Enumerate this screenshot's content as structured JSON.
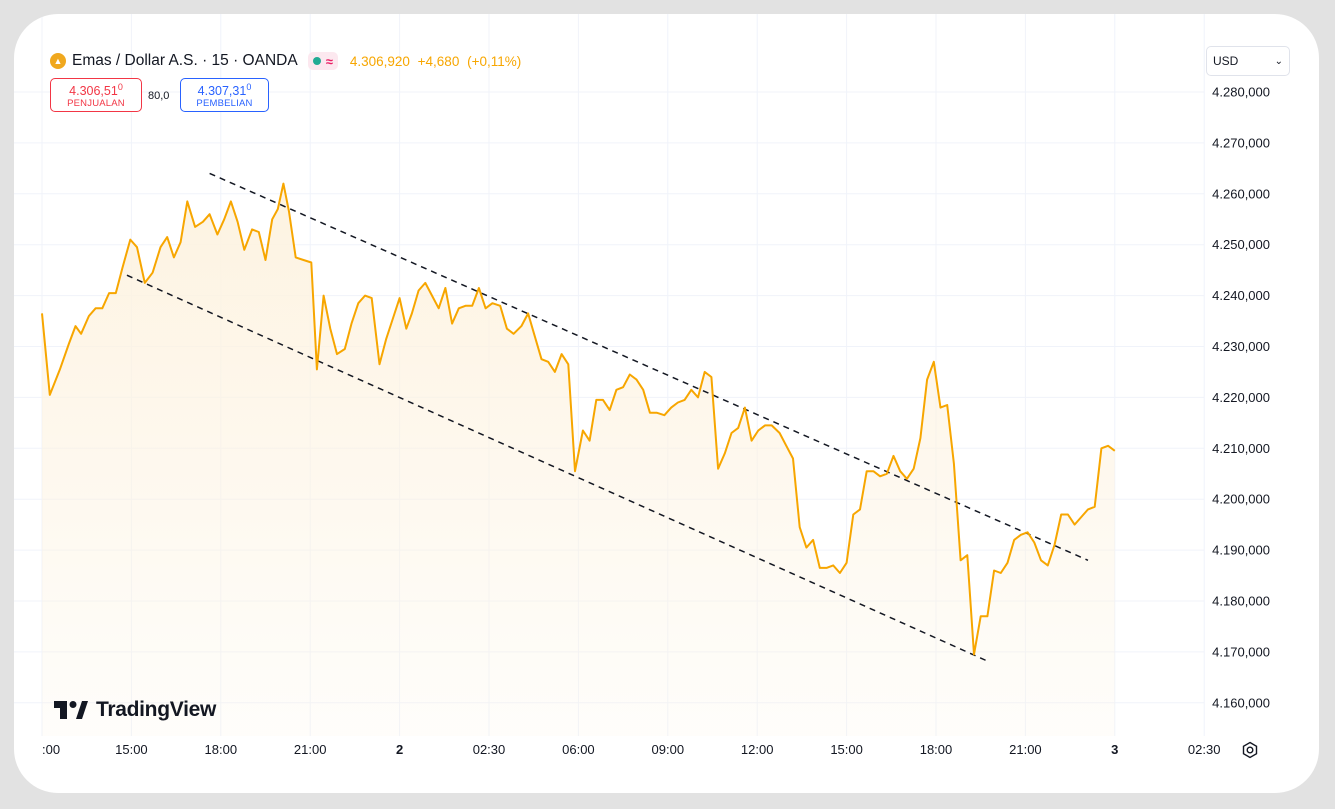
{
  "header": {
    "symbol": "Emas / Dollar A.S. · 15 · OANDA",
    "ohlc_value": "4.306,920",
    "ohlc_change": "+4,680",
    "ohlc_change_pct": "(+0,11%)",
    "symbol_icon": "gold-coin-icon",
    "status_icons": [
      "market-open-dot-icon",
      "delayed-data-wave-icon"
    ]
  },
  "trade": {
    "sell_price": "4.306,51",
    "sell_price_small": "0",
    "sell_label": "PENJUALAN",
    "spread": "80,0",
    "buy_price": "4.307,31",
    "buy_price_small": "0",
    "buy_label": "PEMBELIAN"
  },
  "currency": {
    "value": "USD",
    "icon": "chevron-down-icon"
  },
  "logo": {
    "text": "TradingView",
    "icon": "tradingview-logo-icon"
  },
  "settings": {
    "icon": "gear-icon"
  },
  "colors": {
    "line": "#f7a600",
    "sell": "#f23645",
    "buy": "#2962ff",
    "grid": "#f0f3fa",
    "area_top": "#fdf3e1"
  },
  "chart_data": {
    "type": "area",
    "title": "",
    "xlabel": "",
    "ylabel": "",
    "ylim": [
      4155000,
      4285000
    ],
    "grid": true,
    "legend": "none",
    "x_ticks": [
      {
        "t": 0,
        "label": ":00"
      },
      {
        "t": 4,
        "label": "15:00"
      },
      {
        "t": 8,
        "label": "18:00"
      },
      {
        "t": 12,
        "label": "21:00"
      },
      {
        "t": 16,
        "label": "2"
      },
      {
        "t": 20,
        "label": "02:30"
      },
      {
        "t": 24,
        "label": "06:00"
      },
      {
        "t": 28,
        "label": "09:00"
      },
      {
        "t": 32,
        "label": "12:00"
      },
      {
        "t": 36,
        "label": "15:00"
      },
      {
        "t": 40,
        "label": "18:00"
      },
      {
        "t": 44,
        "label": "21:00"
      },
      {
        "t": 48,
        "label": "3"
      },
      {
        "t": 52,
        "label": "02:30"
      }
    ],
    "y_ticks": [
      {
        "v": 4280000,
        "label": "4.280,000"
      },
      {
        "v": 4270000,
        "label": "4.270,000"
      },
      {
        "v": 4260000,
        "label": "4.260,000"
      },
      {
        "v": 4250000,
        "label": "4.250,000"
      },
      {
        "v": 4240000,
        "label": "4.240,000"
      },
      {
        "v": 4230000,
        "label": "4.230,000"
      },
      {
        "v": 4220000,
        "label": "4.220,000"
      },
      {
        "v": 4210000,
        "label": "4.210,000"
      },
      {
        "v": 4200000,
        "label": "4.200,000"
      },
      {
        "v": 4190000,
        "label": "4.190,000"
      },
      {
        "v": 4180000,
        "label": "4.180,000"
      },
      {
        "v": 4170000,
        "label": "4.170,000"
      },
      {
        "v": 4160000,
        "label": "4.160,000"
      }
    ],
    "series": [
      {
        "points": [
          [
            0,
            4236500
          ],
          [
            0.35,
            4220500
          ],
          [
            0.8,
            4225500
          ],
          [
            1.2,
            4230500
          ],
          [
            1.5,
            4234000
          ],
          [
            1.75,
            4232500
          ],
          [
            2.1,
            4236000
          ],
          [
            2.4,
            4237500
          ],
          [
            2.7,
            4237500
          ],
          [
            3.0,
            4240500
          ],
          [
            3.3,
            4240500
          ],
          [
            3.6,
            4245500
          ],
          [
            3.95,
            4251000
          ],
          [
            4.25,
            4249500
          ],
          [
            4.6,
            4242500
          ],
          [
            4.95,
            4244500
          ],
          [
            5.3,
            4249500
          ],
          [
            5.6,
            4251500
          ],
          [
            5.9,
            4247500
          ],
          [
            6.2,
            4250500
          ],
          [
            6.5,
            4258500
          ],
          [
            6.85,
            4253500
          ],
          [
            7.2,
            4254500
          ],
          [
            7.5,
            4256000
          ],
          [
            7.85,
            4252000
          ],
          [
            8.15,
            4255000
          ],
          [
            8.45,
            4258500
          ],
          [
            8.75,
            4254500
          ],
          [
            9.05,
            4249000
          ],
          [
            9.4,
            4253000
          ],
          [
            9.7,
            4252500
          ],
          [
            10.0,
            4247000
          ],
          [
            10.3,
            4255000
          ],
          [
            10.55,
            4257000
          ],
          [
            10.8,
            4262000
          ],
          [
            11.05,
            4256500
          ],
          [
            11.35,
            4247500
          ],
          [
            11.7,
            4247000
          ],
          [
            12.05,
            4246500
          ],
          [
            12.3,
            4225500
          ],
          [
            12.6,
            4240000
          ],
          [
            12.9,
            4233500
          ],
          [
            13.2,
            4228500
          ],
          [
            13.55,
            4229500
          ],
          [
            13.85,
            4234500
          ],
          [
            14.15,
            4238500
          ],
          [
            14.45,
            4240000
          ],
          [
            14.75,
            4239500
          ],
          [
            15.1,
            4226500
          ],
          [
            15.4,
            4231500
          ],
          [
            15.7,
            4235500
          ],
          [
            16.0,
            4239500
          ],
          [
            16.3,
            4233500
          ],
          [
            16.55,
            4236500
          ],
          [
            16.85,
            4241000
          ],
          [
            17.15,
            4242500
          ],
          [
            17.45,
            4240000
          ],
          [
            17.75,
            4237500
          ],
          [
            18.05,
            4241500
          ],
          [
            18.35,
            4234500
          ],
          [
            18.65,
            4237500
          ],
          [
            18.95,
            4238000
          ],
          [
            19.25,
            4238000
          ],
          [
            19.55,
            4241500
          ],
          [
            19.85,
            4237500
          ],
          [
            20.15,
            4238500
          ],
          [
            20.5,
            4238000
          ],
          [
            20.8,
            4233500
          ],
          [
            21.1,
            4232500
          ],
          [
            21.45,
            4234000
          ],
          [
            21.75,
            4236500
          ],
          [
            22.05,
            4232000
          ],
          [
            22.35,
            4227500
          ],
          [
            22.65,
            4227000
          ],
          [
            22.95,
            4225000
          ],
          [
            23.25,
            4228500
          ],
          [
            23.55,
            4226500
          ],
          [
            23.85,
            4205500
          ],
          [
            24.2,
            4213500
          ],
          [
            24.5,
            4211500
          ],
          [
            24.8,
            4219500
          ],
          [
            25.1,
            4219500
          ],
          [
            25.4,
            4217500
          ],
          [
            25.7,
            4221500
          ],
          [
            26.0,
            4222000
          ],
          [
            26.3,
            4224500
          ],
          [
            26.6,
            4223500
          ],
          [
            26.9,
            4221500
          ],
          [
            27.2,
            4217000
          ],
          [
            27.5,
            4217000
          ],
          [
            27.85,
            4216500
          ],
          [
            28.15,
            4218000
          ],
          [
            28.45,
            4219000
          ],
          [
            28.75,
            4219500
          ],
          [
            29.05,
            4221500
          ],
          [
            29.35,
            4220000
          ],
          [
            29.65,
            4225000
          ],
          [
            29.95,
            4224000
          ],
          [
            30.25,
            4206000
          ],
          [
            30.55,
            4209000
          ],
          [
            30.85,
            4213000
          ],
          [
            31.15,
            4214000
          ],
          [
            31.45,
            4218000
          ],
          [
            31.75,
            4211500
          ],
          [
            32.05,
            4213500
          ],
          [
            32.35,
            4214500
          ],
          [
            32.65,
            4214500
          ],
          [
            33.0,
            4213000
          ],
          [
            33.3,
            4210500
          ],
          [
            33.6,
            4208000
          ],
          [
            33.9,
            4194500
          ],
          [
            34.2,
            4190500
          ],
          [
            34.5,
            4192000
          ],
          [
            34.8,
            4186500
          ],
          [
            35.1,
            4186500
          ],
          [
            35.4,
            4187000
          ],
          [
            35.7,
            4185500
          ],
          [
            36.0,
            4187500
          ],
          [
            36.3,
            4197000
          ],
          [
            36.6,
            4198000
          ],
          [
            36.9,
            4205500
          ],
          [
            37.2,
            4205500
          ],
          [
            37.5,
            4204500
          ],
          [
            37.8,
            4205000
          ],
          [
            38.1,
            4208500
          ],
          [
            38.4,
            4205500
          ],
          [
            38.7,
            4204000
          ],
          [
            39.0,
            4206000
          ],
          [
            39.3,
            4212000
          ],
          [
            39.6,
            4223500
          ],
          [
            39.9,
            4227000
          ],
          [
            40.2,
            4218000
          ],
          [
            40.5,
            4218500
          ],
          [
            40.8,
            4207000
          ],
          [
            41.1,
            4188000
          ],
          [
            41.4,
            4189000
          ],
          [
            41.7,
            4169500
          ],
          [
            42.0,
            4177000
          ],
          [
            42.3,
            4177000
          ],
          [
            42.6,
            4186000
          ],
          [
            42.9,
            4185500
          ],
          [
            43.2,
            4187500
          ],
          [
            43.5,
            4192000
          ],
          [
            43.8,
            4193000
          ],
          [
            44.1,
            4193500
          ],
          [
            44.4,
            4191500
          ],
          [
            44.7,
            4188000
          ],
          [
            45.0,
            4187000
          ],
          [
            45.3,
            4191000
          ],
          [
            45.6,
            4197000
          ],
          [
            45.9,
            4197000
          ],
          [
            46.2,
            4195000
          ],
          [
            46.5,
            4196500
          ],
          [
            46.8,
            4198000
          ],
          [
            47.1,
            4198500
          ],
          [
            47.4,
            4210000
          ],
          [
            47.7,
            4210500
          ],
          [
            48.0,
            4209500
          ]
        ]
      }
    ],
    "trendlines": [
      {
        "from": [
          7.5,
          4264000
        ],
        "to": [
          46.8,
          4188000
        ]
      },
      {
        "from": [
          3.8,
          4244000
        ],
        "to": [
          42.4,
          4168000
        ]
      }
    ]
  }
}
